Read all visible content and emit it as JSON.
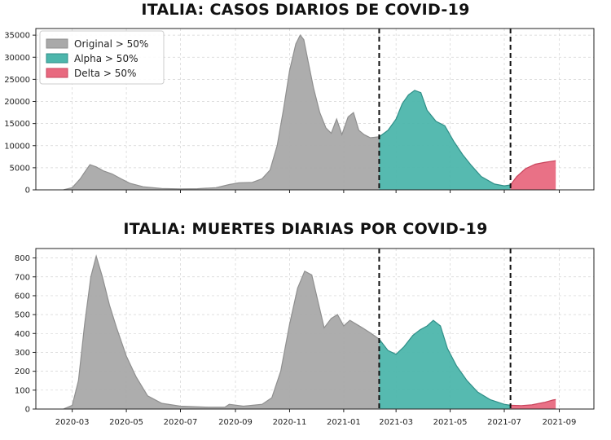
{
  "chart_data": [
    {
      "type": "area",
      "title": "ITALIA: CASOS DIARIOS DE COVID-19",
      "xlabel": "",
      "ylabel": "",
      "ylim": [
        0,
        36500
      ],
      "yticks": [
        0,
        5000,
        10000,
        15000,
        20000,
        25000,
        30000,
        35000
      ],
      "xlim": [
        "2020-01-20",
        "2021-10-10"
      ],
      "grid": true,
      "legend": "top-left",
      "legend_entries": [
        {
          "label": "Original > 50%",
          "color": "#a9a9a9"
        },
        {
          "label": "Alpha > 50%",
          "color": "#4db6ac"
        },
        {
          "label": "Delta > 50%",
          "color": "#e8697f"
        }
      ],
      "vlines": [
        "2021-02-10",
        "2021-07-08"
      ],
      "series": [
        {
          "name": "Original > 50%",
          "color": "#a9a9a9",
          "x": [
            "2020-02-20",
            "2020-03-01",
            "2020-03-10",
            "2020-03-15",
            "2020-03-21",
            "2020-03-28",
            "2020-04-05",
            "2020-04-15",
            "2020-04-25",
            "2020-05-05",
            "2020-05-20",
            "2020-06-10",
            "2020-07-01",
            "2020-07-20",
            "2020-08-10",
            "2020-08-25",
            "2020-09-05",
            "2020-09-20",
            "2020-10-01",
            "2020-10-10",
            "2020-10-18",
            "2020-10-25",
            "2020-11-01",
            "2020-11-08",
            "2020-11-13",
            "2020-11-17",
            "2020-11-22",
            "2020-11-28",
            "2020-12-05",
            "2020-12-12",
            "2020-12-18",
            "2020-12-24",
            "2020-12-30",
            "2021-01-06",
            "2021-01-12",
            "2021-01-18",
            "2021-01-24",
            "2021-01-31",
            "2021-02-10"
          ],
          "values": [
            0,
            500,
            2500,
            4000,
            5700,
            5200,
            4300,
            3600,
            2500,
            1500,
            700,
            300,
            200,
            250,
            500,
            1200,
            1600,
            1700,
            2500,
            4500,
            10000,
            18000,
            27000,
            33000,
            35000,
            34000,
            29000,
            23000,
            17500,
            14000,
            12800,
            16000,
            12500,
            16500,
            17500,
            13500,
            12500,
            11800,
            12000
          ]
        },
        {
          "name": "Alpha > 50%",
          "color": "#4db6ac",
          "x": [
            "2021-02-10",
            "2021-02-20",
            "2021-03-01",
            "2021-03-08",
            "2021-03-15",
            "2021-03-22",
            "2021-03-29",
            "2021-04-05",
            "2021-04-15",
            "2021-04-25",
            "2021-05-05",
            "2021-05-15",
            "2021-05-25",
            "2021-06-05",
            "2021-06-20",
            "2021-07-01",
            "2021-07-08"
          ],
          "values": [
            12000,
            13500,
            16000,
            19500,
            21500,
            22500,
            22000,
            18000,
            15500,
            14500,
            11000,
            8000,
            5500,
            3000,
            1300,
            900,
            1100
          ]
        },
        {
          "name": "Delta > 50%",
          "color": "#e8697f",
          "x": [
            "2021-07-08",
            "2021-07-15",
            "2021-07-25",
            "2021-08-05",
            "2021-08-15",
            "2021-08-25",
            "2021-08-28"
          ],
          "values": [
            1100,
            3000,
            4800,
            5800,
            6200,
            6500,
            6600
          ]
        }
      ]
    },
    {
      "type": "area",
      "title": "ITALIA: MUERTES DIARIAS POR COVID-19",
      "xlabel": "",
      "ylabel": "",
      "ylim": [
        0,
        850
      ],
      "yticks": [
        0,
        100,
        200,
        300,
        400,
        500,
        600,
        700,
        800
      ],
      "xlim": [
        "2020-01-20",
        "2021-10-10"
      ],
      "xticks": [
        "2020-03",
        "2020-05",
        "2020-07",
        "2020-09",
        "2020-11",
        "2021-01",
        "2021-03",
        "2021-05",
        "2021-07",
        "2021-09"
      ],
      "grid": true,
      "vlines": [
        "2021-02-10",
        "2021-07-08"
      ],
      "series": [
        {
          "name": "Original > 50%",
          "color": "#a9a9a9",
          "x": [
            "2020-02-20",
            "2020-03-01",
            "2020-03-08",
            "2020-03-15",
            "2020-03-22",
            "2020-03-28",
            "2020-04-04",
            "2020-04-12",
            "2020-04-20",
            "2020-05-01",
            "2020-05-12",
            "2020-05-25",
            "2020-06-10",
            "2020-07-01",
            "2020-08-01",
            "2020-08-20",
            "2020-08-25",
            "2020-09-10",
            "2020-10-01",
            "2020-10-12",
            "2020-10-22",
            "2020-11-01",
            "2020-11-10",
            "2020-11-18",
            "2020-11-26",
            "2020-12-03",
            "2020-12-10",
            "2020-12-18",
            "2020-12-25",
            "2021-01-01",
            "2021-01-08",
            "2021-01-15",
            "2021-01-22",
            "2021-02-01",
            "2021-02-10"
          ],
          "values": [
            0,
            20,
            150,
            450,
            700,
            810,
            700,
            550,
            430,
            280,
            170,
            70,
            30,
            15,
            10,
            10,
            25,
            15,
            25,
            60,
            200,
            450,
            640,
            730,
            710,
            570,
            430,
            480,
            500,
            440,
            470,
            450,
            430,
            400,
            370
          ]
        },
        {
          "name": "Alpha > 50%",
          "color": "#4db6ac",
          "x": [
            "2021-02-10",
            "2021-02-20",
            "2021-03-01",
            "2021-03-10",
            "2021-03-20",
            "2021-03-28",
            "2021-04-05",
            "2021-04-12",
            "2021-04-20",
            "2021-04-28",
            "2021-05-08",
            "2021-05-20",
            "2021-06-01",
            "2021-06-15",
            "2021-07-01",
            "2021-07-08"
          ],
          "values": [
            370,
            310,
            290,
            330,
            390,
            420,
            440,
            470,
            440,
            320,
            230,
            150,
            90,
            50,
            25,
            20
          ]
        },
        {
          "name": "Delta > 50%",
          "color": "#e8697f",
          "x": [
            "2021-07-08",
            "2021-07-20",
            "2021-08-01",
            "2021-08-15",
            "2021-08-25",
            "2021-08-28"
          ],
          "values": [
            20,
            18,
            22,
            35,
            48,
            50
          ]
        }
      ]
    }
  ]
}
